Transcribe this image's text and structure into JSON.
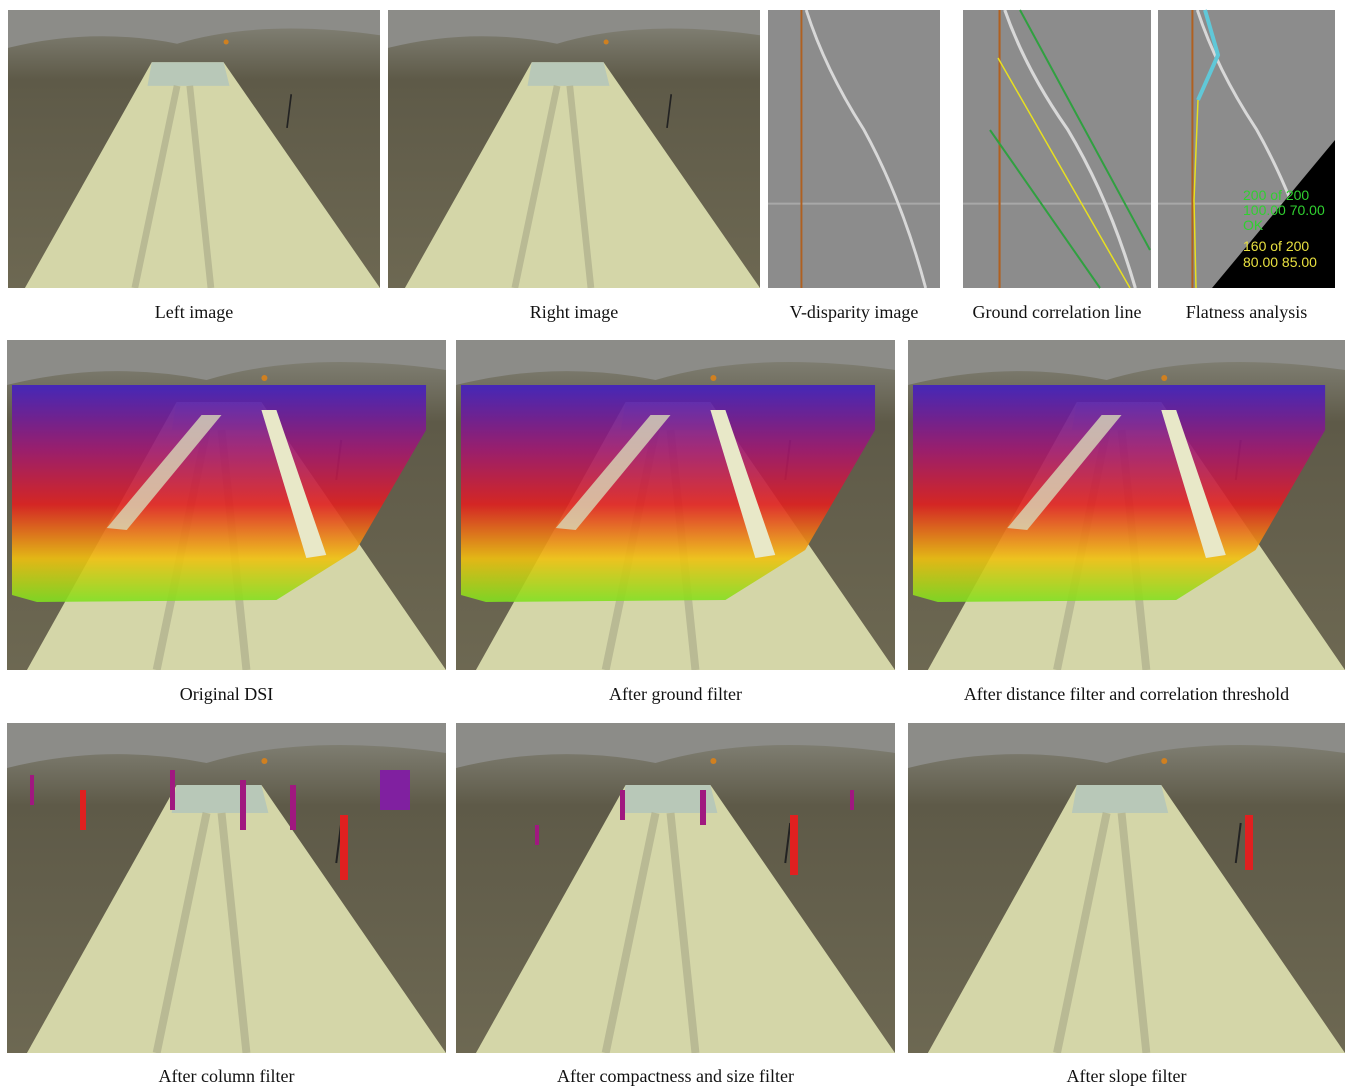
{
  "figure": {
    "row1": [
      "Left image",
      "Right image",
      "V-disparity image",
      "Ground correlation line",
      "Flatness analysis"
    ],
    "row2": [
      "Original DSI",
      "After ground filter",
      "After distance filter and correlation threshold"
    ],
    "row3": [
      "After column filter",
      "After compactness and size filter",
      "After slope filter"
    ]
  },
  "flatness_overlay": {
    "green": [
      "200 of 200",
      "100.00 70.00",
      "OK"
    ],
    "yellow": [
      "160 of 200",
      "80.00 85.00"
    ]
  }
}
